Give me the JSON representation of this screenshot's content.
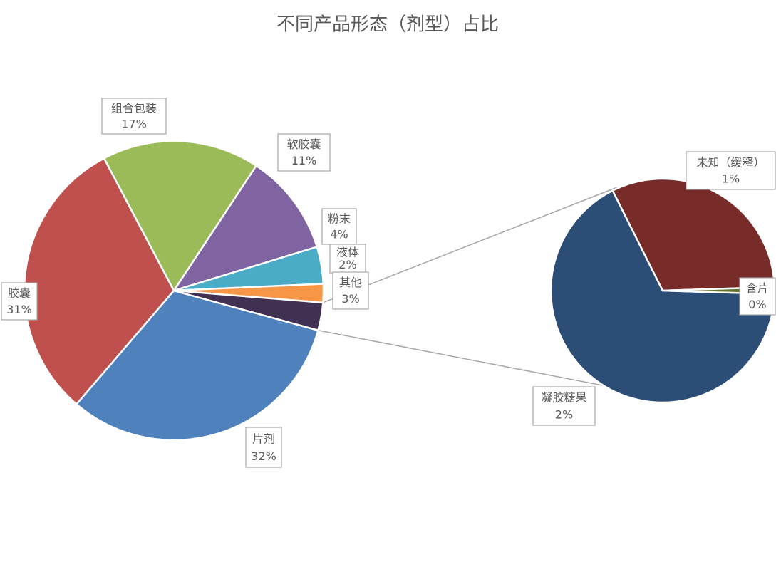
{
  "chart_data": {
    "type": "pie-of-pie",
    "title": "不同产品形态（剂型）占比",
    "categories": [
      "片剂",
      "胶囊",
      "组合包装",
      "软胶囊",
      "粉末",
      "液体",
      "其他"
    ],
    "values": [
      32,
      31,
      17,
      11,
      4,
      2,
      3
    ],
    "value_labels": [
      "32%",
      "31%",
      "17%",
      "11%",
      "4%",
      "2%",
      "3%"
    ],
    "colors": [
      "#4f81bd",
      "#c0504d",
      "#9bbb59",
      "#8064a2",
      "#4bacc6",
      "#f79646",
      "#403152"
    ],
    "secondary": {
      "categories": [
        "凝胶糖果",
        "未知（缓释）",
        "含片"
      ],
      "values": [
        2,
        0.95,
        0.03
      ],
      "value_labels": [
        "2%",
        "1%",
        "0%"
      ],
      "colors": [
        "#2c4d75",
        "#772c2a",
        "#5f7530"
      ]
    }
  }
}
